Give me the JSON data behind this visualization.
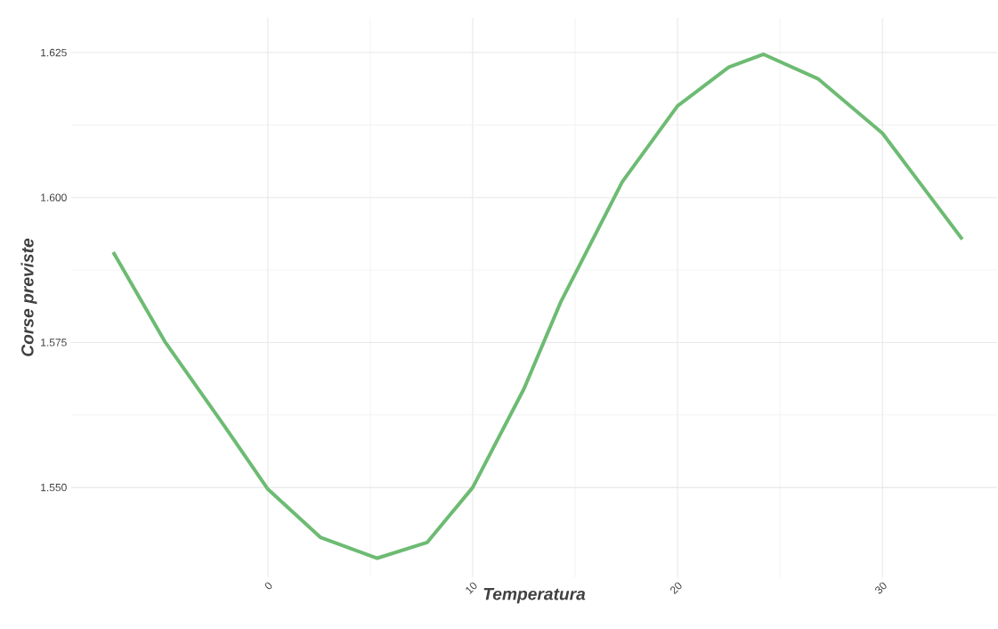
{
  "chart_data": {
    "type": "line",
    "xlabel": "Temperatura",
    "ylabel": "Corse previste",
    "x": [
      -7.55,
      -5,
      -2.2,
      0,
      2.56,
      5.34,
      7.77,
      10,
      12.5,
      14.3,
      17.3,
      20,
      22.5,
      24.2,
      26.85,
      30,
      33.9
    ],
    "series": [
      {
        "color": "#6dbb73",
        "values": [
          1.5906,
          1.575,
          1.561,
          1.5497,
          1.5414,
          1.5378,
          1.5405,
          1.55,
          1.567,
          1.582,
          1.6027,
          1.6158,
          1.6225,
          1.6247,
          1.6205,
          1.6111,
          1.5928
        ]
      }
    ],
    "xlim": [
      -9.6,
      35.6
    ],
    "ylim": [
      1.5345,
      1.631
    ],
    "xticks": [
      0,
      10,
      20,
      30
    ],
    "yticks": [
      {
        "value": 1.55,
        "label": "1.550"
      },
      {
        "value": 1.575,
        "label": "1.575"
      },
      {
        "value": 1.6,
        "label": "1.600"
      },
      {
        "value": 1.625,
        "label": "1.625"
      }
    ],
    "grid": true,
    "marker": "none",
    "line_style": "solid"
  }
}
